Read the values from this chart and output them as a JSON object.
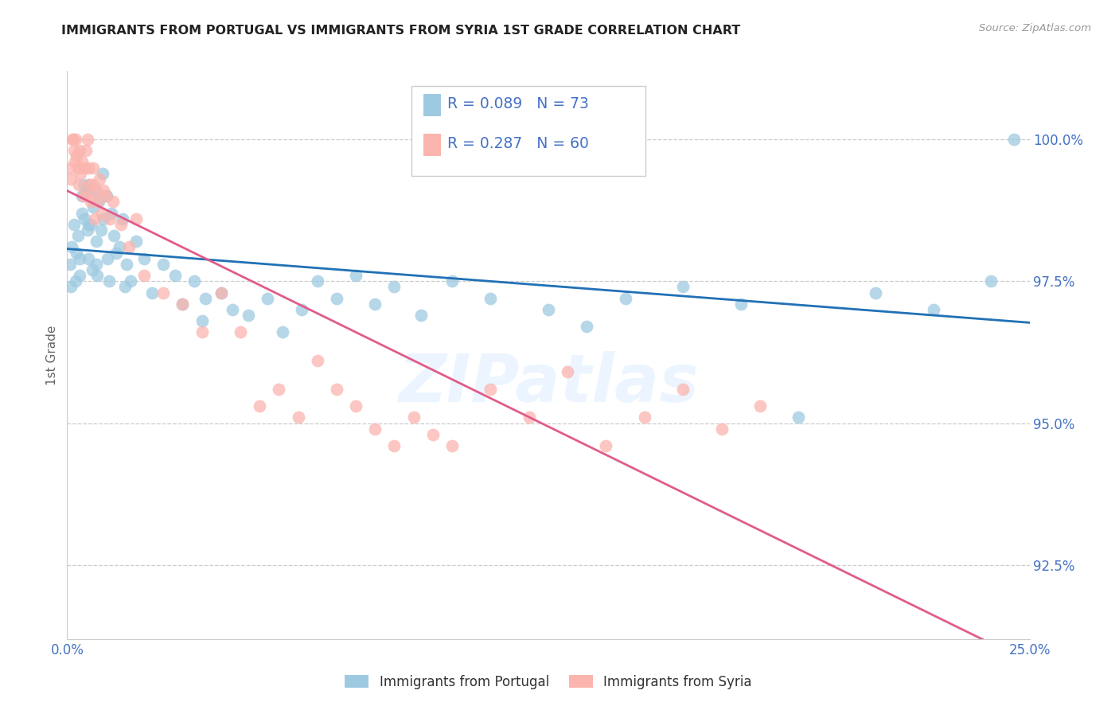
{
  "title": "IMMIGRANTS FROM PORTUGAL VS IMMIGRANTS FROM SYRIA 1ST GRADE CORRELATION CHART",
  "source": "Source: ZipAtlas.com",
  "ylabel": "1st Grade",
  "ytick_labels": [
    "100.0%",
    "97.5%",
    "95.0%",
    "92.5%"
  ],
  "ytick_values": [
    100.0,
    97.5,
    95.0,
    92.5
  ],
  "xtick_labels": [
    "0.0%",
    "25.0%"
  ],
  "xtick_values": [
    0.0,
    25.0
  ],
  "xlim": [
    0.0,
    25.0
  ],
  "ylim": [
    91.2,
    101.2
  ],
  "watermark": "ZIPatlas",
  "portugal_R": 0.089,
  "portugal_N": 73,
  "syria_R": 0.287,
  "syria_N": 60,
  "portugal_scatter_color": "#9ecae1",
  "portugal_line_color": "#2171b5",
  "syria_scatter_color": "#fbb4ae",
  "syria_line_color": "#e05c8a",
  "label_color": "#4472c4",
  "grid_color": "#cccccc",
  "portugal_x": [
    0.08,
    0.12,
    0.18,
    0.22,
    0.28,
    0.32,
    0.33,
    0.38,
    0.38,
    0.42,
    0.44,
    0.48,
    0.52,
    0.55,
    0.58,
    0.62,
    0.65,
    0.68,
    0.72,
    0.75,
    0.78,
    0.82,
    0.88,
    0.92,
    0.95,
    1.02,
    1.05,
    1.08,
    1.15,
    1.22,
    1.28,
    1.35,
    1.45,
    1.55,
    1.65,
    1.8,
    2.0,
    2.2,
    2.5,
    2.8,
    3.0,
    3.3,
    3.6,
    4.0,
    4.3,
    4.7,
    5.2,
    5.6,
    6.1,
    6.5,
    7.0,
    7.5,
    8.0,
    8.5,
    9.2,
    10.0,
    11.0,
    12.5,
    13.5,
    14.5,
    16.0,
    17.5,
    19.0,
    21.0,
    22.5,
    24.0,
    24.6,
    0.1,
    0.25,
    0.55,
    0.75,
    1.5,
    3.5
  ],
  "portugal_y": [
    97.8,
    98.1,
    98.5,
    97.5,
    98.3,
    97.9,
    97.6,
    99.0,
    98.7,
    99.2,
    98.6,
    99.1,
    98.4,
    97.9,
    99.2,
    98.5,
    97.7,
    98.8,
    99.1,
    98.2,
    97.6,
    98.9,
    98.4,
    99.4,
    98.6,
    99.0,
    97.9,
    97.5,
    98.7,
    98.3,
    98.0,
    98.1,
    98.6,
    97.8,
    97.5,
    98.2,
    97.9,
    97.3,
    97.8,
    97.6,
    97.1,
    97.5,
    97.2,
    97.3,
    97.0,
    96.9,
    97.2,
    96.6,
    97.0,
    97.5,
    97.2,
    97.6,
    97.1,
    97.4,
    96.9,
    97.5,
    97.2,
    97.0,
    96.7,
    97.2,
    97.4,
    97.1,
    95.1,
    97.3,
    97.0,
    97.5,
    100.0,
    97.4,
    98.0,
    98.5,
    97.8,
    97.4,
    96.8
  ],
  "syria_x": [
    0.08,
    0.14,
    0.16,
    0.18,
    0.22,
    0.25,
    0.28,
    0.32,
    0.35,
    0.38,
    0.42,
    0.45,
    0.48,
    0.52,
    0.55,
    0.58,
    0.62,
    0.65,
    0.68,
    0.72,
    0.76,
    0.8,
    0.85,
    0.9,
    0.95,
    1.0,
    1.1,
    1.2,
    1.4,
    1.6,
    1.8,
    2.0,
    2.5,
    3.0,
    3.5,
    4.0,
    4.5,
    5.0,
    5.5,
    6.0,
    6.5,
    7.0,
    7.5,
    8.0,
    8.5,
    9.0,
    9.5,
    10.0,
    11.0,
    12.0,
    13.0,
    14.0,
    15.0,
    16.0,
    17.0,
    18.0,
    0.1,
    0.2,
    0.3,
    0.5
  ],
  "syria_y": [
    99.5,
    100.0,
    100.0,
    99.8,
    100.0,
    99.7,
    99.5,
    99.8,
    99.4,
    99.6,
    99.0,
    99.5,
    99.8,
    100.0,
    99.5,
    99.2,
    98.9,
    99.2,
    99.5,
    98.6,
    99.1,
    98.9,
    99.3,
    98.7,
    99.1,
    99.0,
    98.6,
    98.9,
    98.5,
    98.1,
    98.6,
    97.6,
    97.3,
    97.1,
    96.6,
    97.3,
    96.6,
    95.3,
    95.6,
    95.1,
    96.1,
    95.6,
    95.3,
    94.9,
    94.6,
    95.1,
    94.8,
    94.6,
    95.6,
    95.1,
    95.9,
    94.6,
    95.1,
    95.6,
    94.9,
    95.3,
    99.3,
    99.6,
    99.2,
    99.0
  ]
}
